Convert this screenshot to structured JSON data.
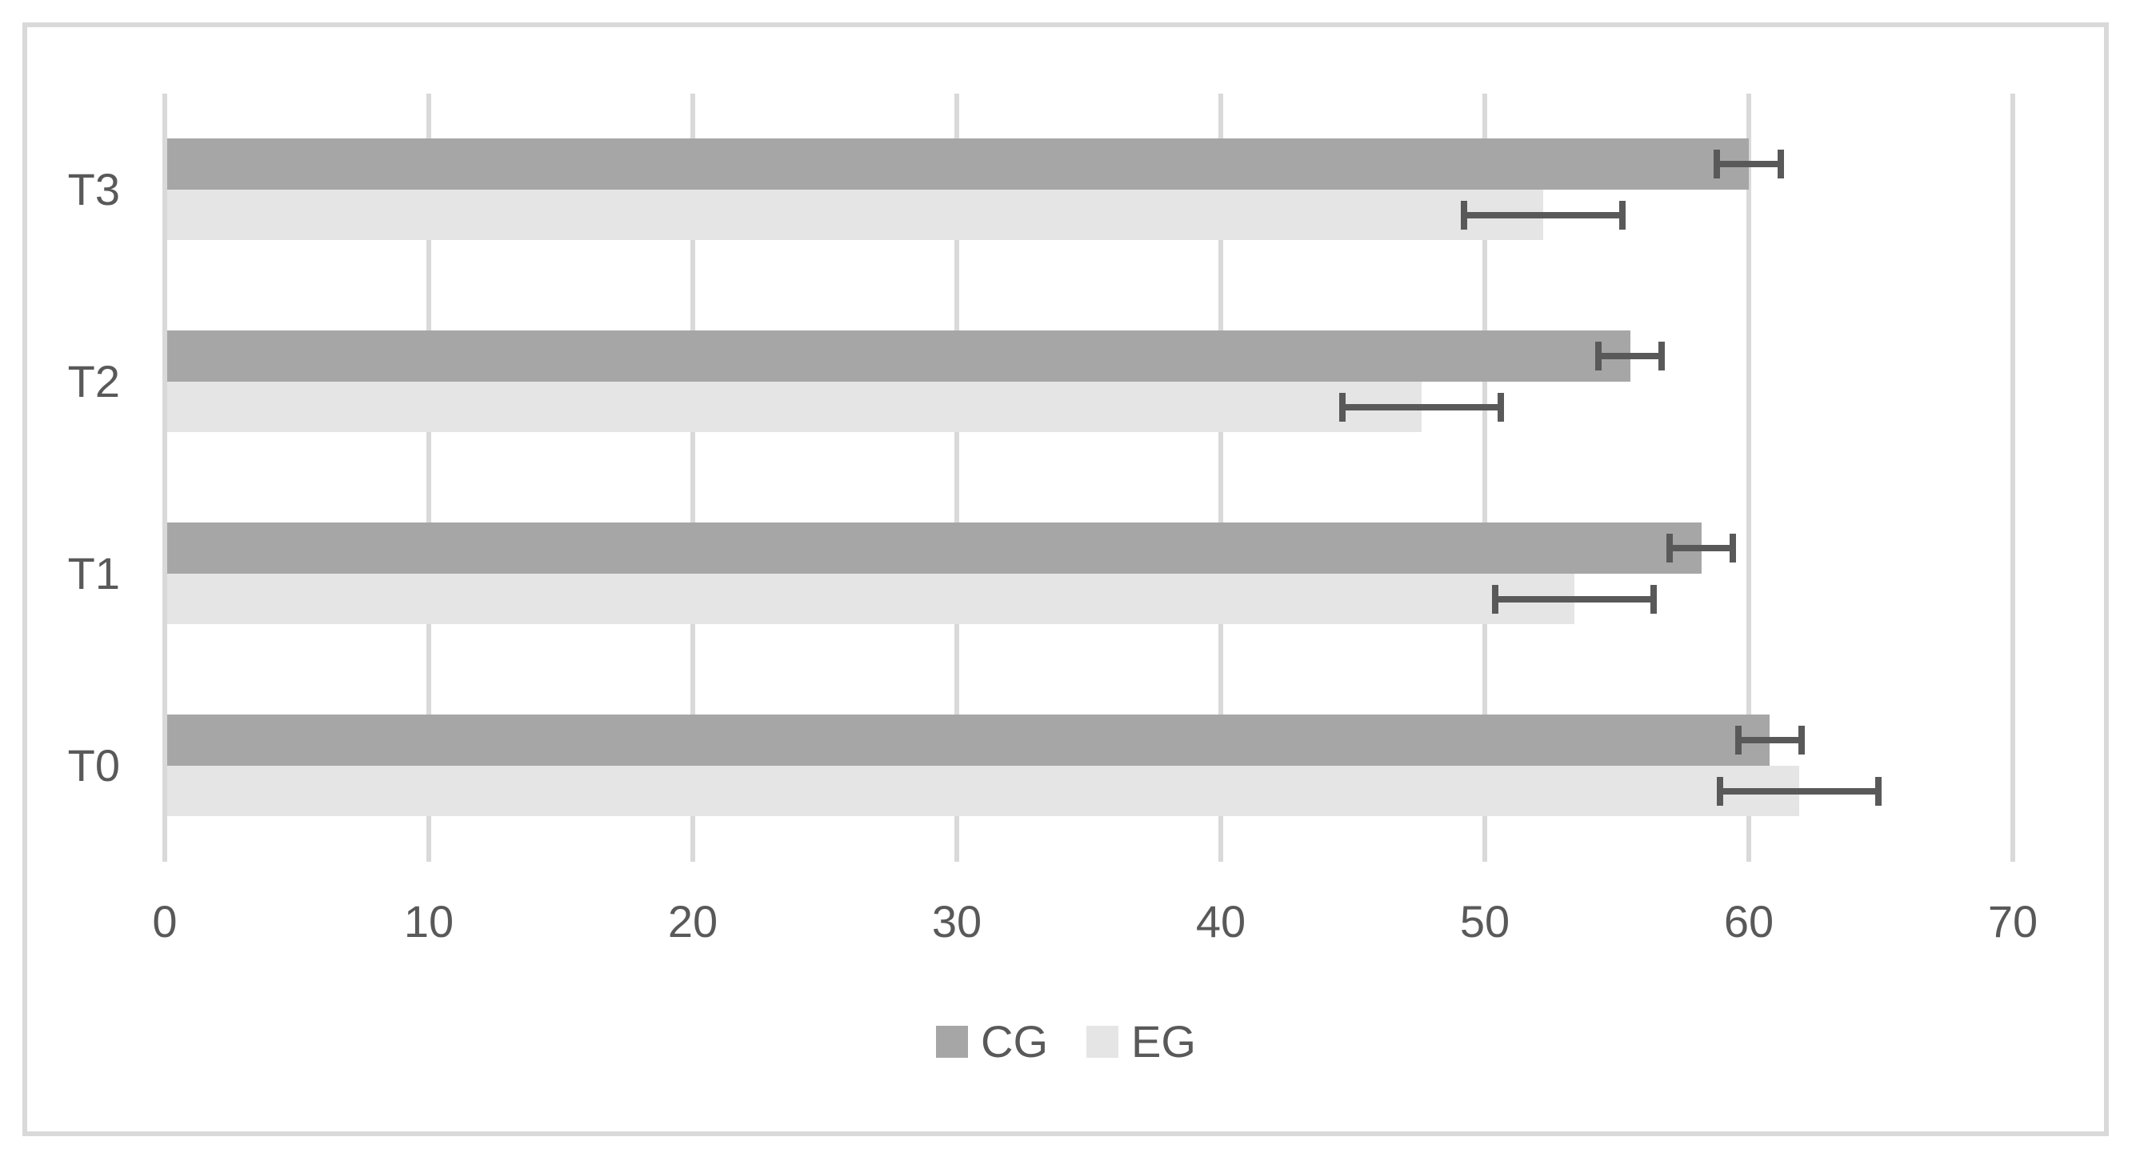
{
  "chart_data": {
    "type": "bar",
    "orientation": "horizontal",
    "title": "",
    "xlabel": "",
    "ylabel": "",
    "categories": [
      "T0",
      "T1",
      "T2",
      "T3"
    ],
    "category_display_order_top_to_bottom": [
      "T3",
      "T2",
      "T1",
      "T0"
    ],
    "series": [
      {
        "name": "CG",
        "color": "#a6a6a6",
        "values": [
          60.8,
          58.2,
          55.5,
          60.0
        ],
        "errors": [
          1.2,
          1.2,
          1.2,
          1.2
        ]
      },
      {
        "name": "EG",
        "color": "#e6e5e5",
        "values": [
          61.9,
          53.4,
          47.6,
          52.2
        ],
        "errors": [
          3.0,
          3.0,
          3.0,
          3.0
        ]
      }
    ],
    "x_ticks": [
      "0",
      "10",
      "20",
      "30",
      "40",
      "50",
      "60",
      "70"
    ],
    "xlim": [
      0,
      70
    ],
    "grid": true,
    "legend_position": "bottom-center",
    "colors": {
      "gridline": "#d9d9d9",
      "axis_text": "#595959",
      "error_bar": "#595959",
      "figure_border": "#d9d9d9",
      "background": "#ffffff"
    }
  }
}
